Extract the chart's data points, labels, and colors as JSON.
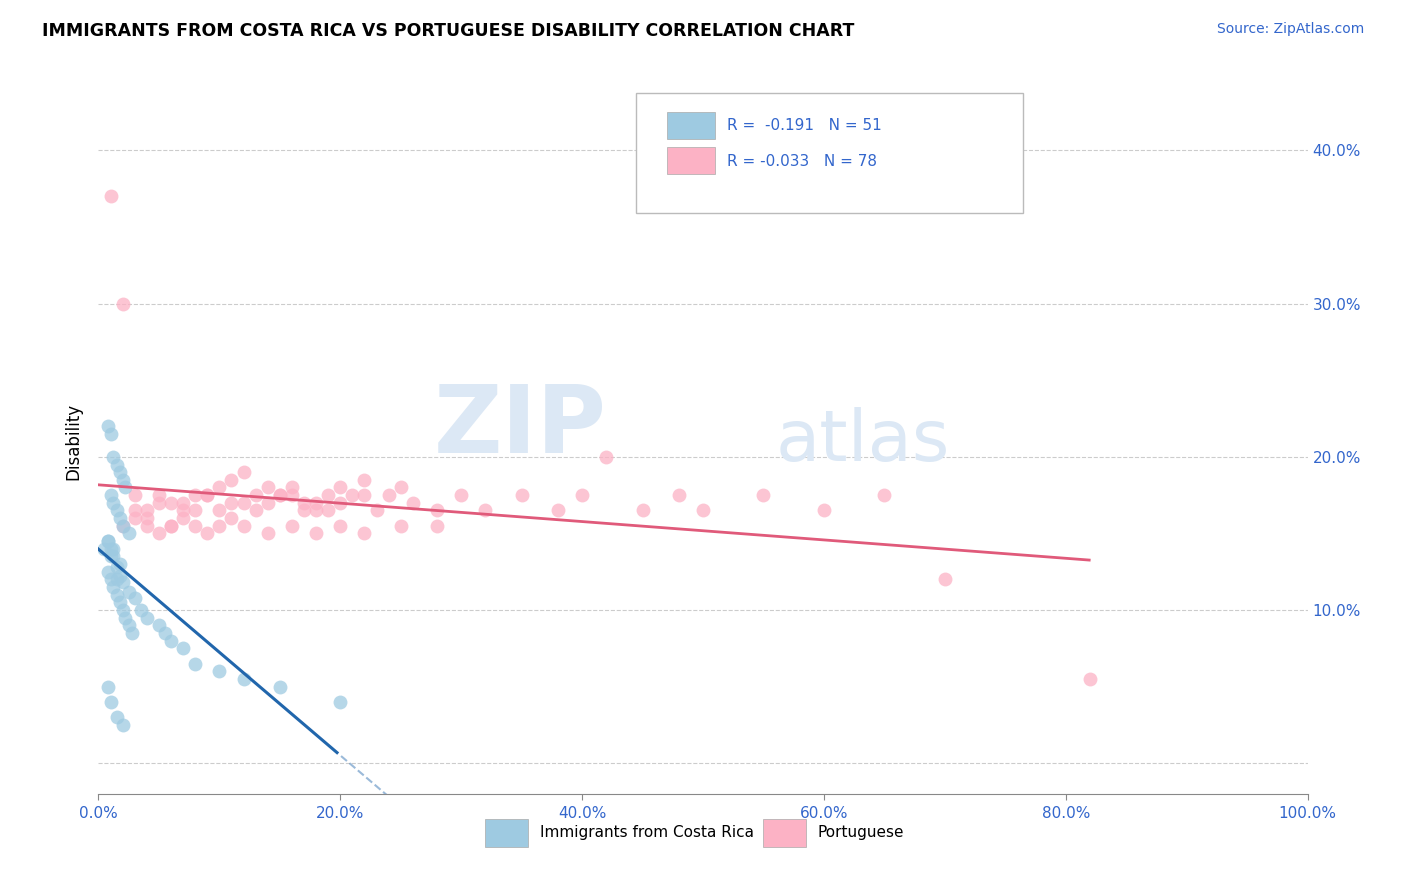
{
  "title": "IMMIGRANTS FROM COSTA RICA VS PORTUGUESE DISABILITY CORRELATION CHART",
  "source": "Source: ZipAtlas.com",
  "ylabel": "Disability",
  "xlim": [
    0.0,
    1.0
  ],
  "ylim": [
    -0.02,
    0.44
  ],
  "x_ticks": [
    0.0,
    0.2,
    0.4,
    0.6,
    0.8,
    1.0
  ],
  "y_ticks": [
    0.0,
    0.1,
    0.2,
    0.3,
    0.4
  ],
  "legend1_r": "-0.191",
  "legend1_n": "51",
  "legend2_r": "-0.033",
  "legend2_n": "78",
  "blue_color": "#9ecae1",
  "pink_color": "#fcb2c5",
  "blue_line_color": "#2166ac",
  "pink_line_color": "#e05a7a",
  "watermark_color": "#dce8f5",
  "blue_scatter_x": [
    0.005,
    0.008,
    0.01,
    0.012,
    0.015,
    0.018,
    0.008,
    0.01,
    0.012,
    0.015,
    0.018,
    0.02,
    0.022,
    0.025,
    0.028,
    0.008,
    0.01,
    0.012,
    0.015,
    0.018,
    0.02,
    0.022,
    0.01,
    0.012,
    0.015,
    0.018,
    0.02,
    0.025,
    0.008,
    0.01,
    0.012,
    0.015,
    0.018,
    0.02,
    0.025,
    0.03,
    0.035,
    0.04,
    0.05,
    0.055,
    0.06,
    0.07,
    0.08,
    0.1,
    0.12,
    0.15,
    0.2,
    0.008,
    0.01,
    0.015,
    0.02
  ],
  "blue_scatter_y": [
    0.14,
    0.145,
    0.135,
    0.14,
    0.12,
    0.13,
    0.125,
    0.12,
    0.115,
    0.11,
    0.105,
    0.1,
    0.095,
    0.09,
    0.085,
    0.22,
    0.215,
    0.2,
    0.195,
    0.19,
    0.185,
    0.18,
    0.175,
    0.17,
    0.165,
    0.16,
    0.155,
    0.15,
    0.145,
    0.14,
    0.135,
    0.128,
    0.122,
    0.118,
    0.112,
    0.108,
    0.1,
    0.095,
    0.09,
    0.085,
    0.08,
    0.075,
    0.065,
    0.06,
    0.055,
    0.05,
    0.04,
    0.05,
    0.04,
    0.03,
    0.025
  ],
  "pink_scatter_x": [
    0.01,
    0.02,
    0.05,
    0.03,
    0.04,
    0.06,
    0.08,
    0.07,
    0.09,
    0.1,
    0.11,
    0.12,
    0.13,
    0.14,
    0.15,
    0.16,
    0.17,
    0.18,
    0.19,
    0.2,
    0.22,
    0.24,
    0.26,
    0.28,
    0.3,
    0.25,
    0.22,
    0.2,
    0.18,
    0.16,
    0.14,
    0.12,
    0.1,
    0.08,
    0.06,
    0.04,
    0.03,
    0.05,
    0.07,
    0.09,
    0.11,
    0.13,
    0.15,
    0.17,
    0.19,
    0.21,
    0.23,
    0.32,
    0.35,
    0.38,
    0.4,
    0.42,
    0.45,
    0.48,
    0.5,
    0.55,
    0.6,
    0.65,
    0.7,
    0.82,
    0.02,
    0.03,
    0.04,
    0.05,
    0.06,
    0.07,
    0.08,
    0.09,
    0.1,
    0.11,
    0.12,
    0.14,
    0.16,
    0.18,
    0.2,
    0.22,
    0.25,
    0.28
  ],
  "pink_scatter_y": [
    0.37,
    0.3,
    0.175,
    0.165,
    0.16,
    0.155,
    0.165,
    0.17,
    0.175,
    0.18,
    0.185,
    0.19,
    0.175,
    0.17,
    0.175,
    0.18,
    0.165,
    0.17,
    0.175,
    0.18,
    0.185,
    0.175,
    0.17,
    0.165,
    0.175,
    0.18,
    0.175,
    0.17,
    0.165,
    0.175,
    0.18,
    0.17,
    0.165,
    0.175,
    0.17,
    0.165,
    0.175,
    0.17,
    0.165,
    0.175,
    0.17,
    0.165,
    0.175,
    0.17,
    0.165,
    0.175,
    0.165,
    0.165,
    0.175,
    0.165,
    0.175,
    0.2,
    0.165,
    0.175,
    0.165,
    0.175,
    0.165,
    0.175,
    0.12,
    0.055,
    0.155,
    0.16,
    0.155,
    0.15,
    0.155,
    0.16,
    0.155,
    0.15,
    0.155,
    0.16,
    0.155,
    0.15,
    0.155,
    0.15,
    0.155,
    0.15,
    0.155,
    0.155
  ]
}
